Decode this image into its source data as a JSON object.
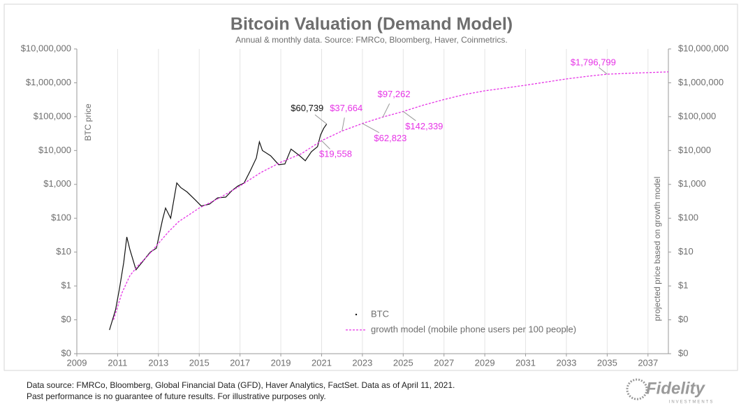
{
  "chart_data": {
    "type": "line",
    "title": "Bitcoin Valuation (Demand Model)",
    "subtitle": "Annual & monthly  data.  Source: FMRCo, Bloomberg, Haver, Coinmetrics.",
    "y_label": "BTC price",
    "y2_label": "projected price based on growth model",
    "log_y": true,
    "grid": "x",
    "legend": "lower center",
    "xlim": [
      2009,
      2038
    ],
    "xticks": [
      2009,
      2011,
      2013,
      2015,
      2017,
      2019,
      2021,
      2023,
      2025,
      2027,
      2029,
      2031,
      2033,
      2035,
      2037
    ],
    "ylim": [
      0.01,
      10000000
    ],
    "yticks": [
      {
        "value": 0.01,
        "label": "$0"
      },
      {
        "value": 0.1,
        "label": "$0"
      },
      {
        "value": 1,
        "label": "$1"
      },
      {
        "value": 10,
        "label": "$10"
      },
      {
        "value": 100,
        "label": "$100"
      },
      {
        "value": 1000,
        "label": "$1,000"
      },
      {
        "value": 10000,
        "label": "$10,000"
      },
      {
        "value": 100000,
        "label": "$100,000"
      },
      {
        "value": 1000000,
        "label": "$1,000,000"
      },
      {
        "value": 10000000,
        "label": "$10,000,000"
      }
    ],
    "y2lim": [
      0.01,
      10000000
    ],
    "y2ticks": [
      {
        "value": 0.01,
        "label": "$0"
      },
      {
        "value": 0.1,
        "label": "$0"
      },
      {
        "value": 1,
        "label": "$1"
      },
      {
        "value": 10,
        "label": "$10"
      },
      {
        "value": 100,
        "label": "$100"
      },
      {
        "value": 1000,
        "label": "$1,000"
      },
      {
        "value": 10000,
        "label": "$10,000"
      },
      {
        "value": 100000,
        "label": "$100,000"
      },
      {
        "value": 1000000,
        "label": "$1,000,000"
      },
      {
        "value": 10000000,
        "label": "$10,000,000"
      }
    ],
    "series": [
      {
        "name": "BTC",
        "color": "#111111",
        "dash": false,
        "x": [
          2010.6,
          2010.9,
          2011.1,
          2011.3,
          2011.45,
          2011.6,
          2011.9,
          2012.2,
          2012.6,
          2012.9,
          2013.2,
          2013.35,
          2013.6,
          2013.9,
          2014.1,
          2014.4,
          2014.8,
          2015.1,
          2015.5,
          2015.9,
          2016.3,
          2016.6,
          2016.9,
          2017.2,
          2017.5,
          2017.8,
          2017.95,
          2018.1,
          2018.5,
          2018.9,
          2019.2,
          2019.5,
          2019.9,
          2020.2,
          2020.5,
          2020.8,
          2020.95,
          2021.1,
          2021.25
        ],
        "values": [
          0.05,
          0.2,
          0.9,
          5,
          28,
          12,
          3,
          5,
          10,
          13,
          90,
          200,
          100,
          1100,
          800,
          600,
          350,
          230,
          260,
          400,
          420,
          650,
          900,
          1100,
          2500,
          6000,
          18000,
          10000,
          7000,
          3800,
          4000,
          11000,
          7200,
          5000,
          9200,
          13000,
          29000,
          45000,
          60739
        ],
        "value_labels": [
          null,
          null,
          null,
          null,
          null,
          null,
          null,
          null,
          null,
          null,
          null,
          null,
          null,
          null,
          null,
          null,
          null,
          null,
          null,
          null,
          null,
          null,
          null,
          null,
          null,
          null,
          null,
          null,
          null,
          null,
          null,
          null,
          null,
          null,
          null,
          null,
          null,
          null,
          "$60,739"
        ]
      },
      {
        "name": "growth model (mobile phone users per 100 people)",
        "color": "#e633e6",
        "dash": true,
        "x": [
          2010.8,
          2011.2,
          2011.6,
          2012,
          2012.5,
          2013,
          2013.5,
          2014,
          2015,
          2016,
          2017,
          2018,
          2019,
          2020,
          2021,
          2022,
          2023,
          2024,
          2025,
          2026,
          2027,
          2028,
          2029,
          2030,
          2031,
          2032,
          2033,
          2034,
          2035,
          2036,
          2037,
          2038
        ],
        "values": [
          0.1,
          0.6,
          2,
          4,
          8,
          18,
          40,
          80,
          200,
          400,
          900,
          2200,
          4500,
          8000,
          19558,
          37664,
          62823,
          97262,
          142339,
          220000,
          320000,
          450000,
          580000,
          700000,
          850000,
          1050000,
          1300000,
          1550000,
          1796799,
          1900000,
          2000000,
          2100000
        ],
        "value_labels": [
          null,
          null,
          null,
          null,
          null,
          null,
          null,
          null,
          null,
          null,
          null,
          null,
          null,
          null,
          "$19,558",
          "$37,664",
          "$62,823",
          "$97,262",
          "$142,339",
          null,
          null,
          null,
          null,
          null,
          null,
          null,
          null,
          null,
          "$1,796,799",
          null,
          null,
          null
        ]
      }
    ]
  },
  "footer": [
    "Data source: FMRCo, Bloomberg, Global Financial Data (GFD), Haver Analytics, FactSet. Data as of April 11, 2021.",
    "Past performance is no guarantee of future results. For illustrative purposes only."
  ],
  "logo": {
    "name": "Fidelity",
    "tagline": "INVESTMENTS"
  }
}
